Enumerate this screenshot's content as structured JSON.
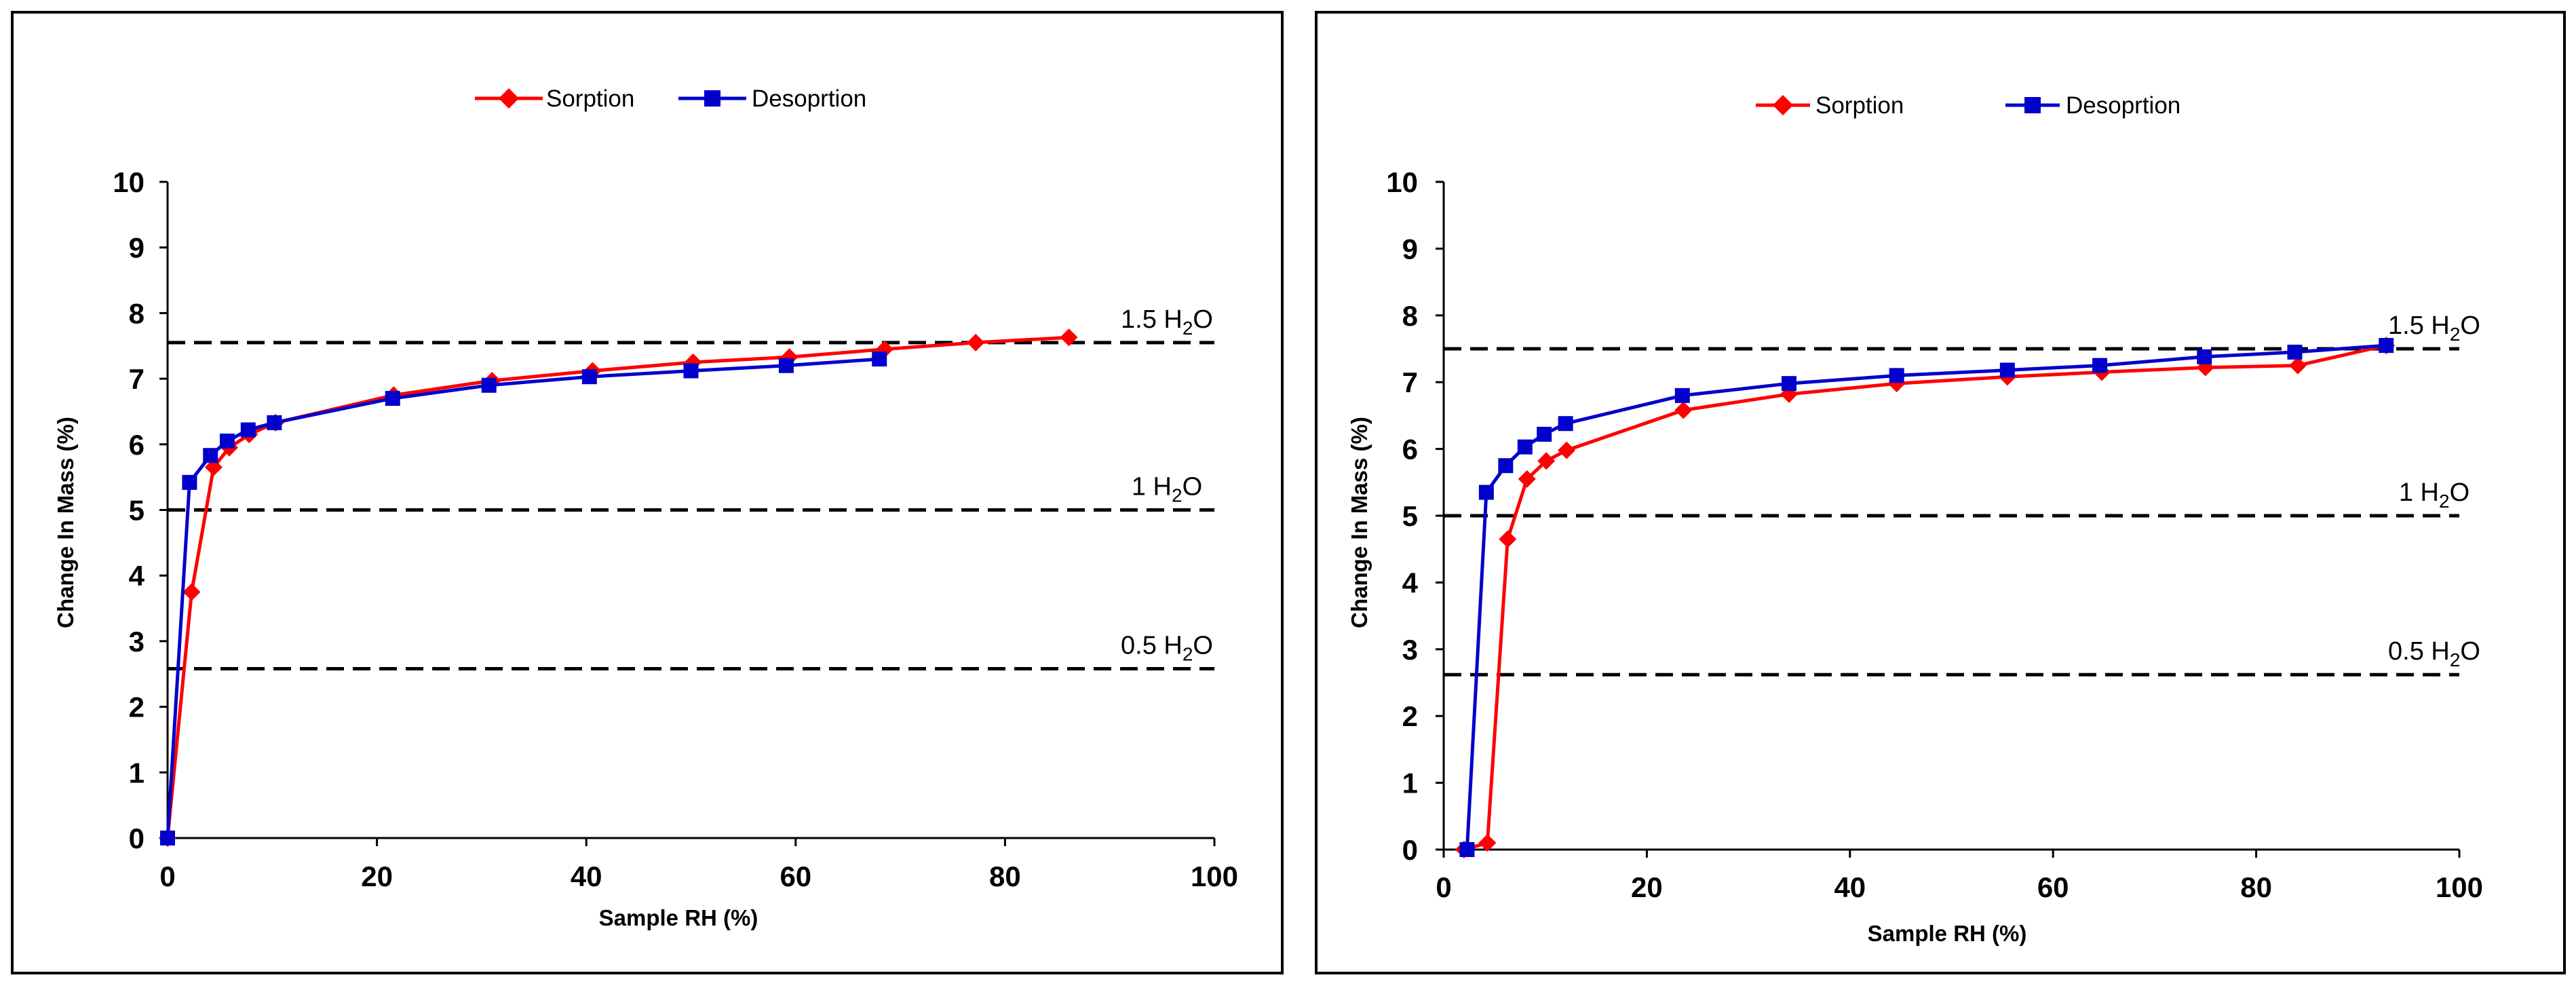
{
  "chart_data": [
    {
      "type": "line",
      "title": "",
      "xlabel": "Sample RH (%)",
      "ylabel": "Change In Mass (%)",
      "xlim": [
        0,
        100
      ],
      "ylim": [
        0,
        10
      ],
      "xticks": [
        "0",
        "20",
        "40",
        "60",
        "80",
        "100"
      ],
      "yticks": [
        "0",
        "1",
        "2",
        "3",
        "4",
        "5",
        "6",
        "7",
        "8",
        "9",
        "10"
      ],
      "legend": {
        "position": "top-center",
        "entries": [
          "Sorption",
          "Desoprtion"
        ]
      },
      "colors": {
        "Sorption": "#ff0000",
        "Desoprtion": "#0000cc"
      },
      "series": [
        {
          "name": "Sorption",
          "marker": "diamond",
          "x": [
            0,
            2.3,
            4.4,
            5.9,
            7.8,
            10.3,
            21.6,
            31.0,
            40.6,
            50.2,
            59.4,
            68.5,
            77.2,
            86.1
          ],
          "y": [
            0,
            3.75,
            5.65,
            5.95,
            6.15,
            6.33,
            6.75,
            6.97,
            7.12,
            7.25,
            7.33,
            7.45,
            7.55,
            7.63
          ]
        },
        {
          "name": "Desoprtion",
          "marker": "square",
          "x": [
            68.0,
            59.1,
            50.0,
            40.3,
            30.7,
            21.5,
            10.2,
            7.7,
            5.7,
            4.1,
            2.1,
            0
          ],
          "y": [
            7.3,
            7.2,
            7.12,
            7.03,
            6.9,
            6.7,
            6.33,
            6.22,
            6.05,
            5.83,
            5.42,
            0
          ]
        }
      ],
      "reference_lines": [
        {
          "y": 7.55,
          "label_main": "1.5 H",
          "label_sub": "2",
          "label_end": "O"
        },
        {
          "y": 5.0,
          "label_main": "1 H",
          "label_sub": "2",
          "label_end": "O"
        },
        {
          "y": 2.58,
          "label_main": "0.5 H",
          "label_sub": "2",
          "label_end": "O"
        }
      ]
    },
    {
      "type": "line",
      "title": "",
      "xlabel": "Sample RH (%)",
      "ylabel": "Change In Mass (%)",
      "xlim": [
        0,
        100
      ],
      "ylim": [
        0,
        10
      ],
      "xticks": [
        "0",
        "20",
        "40",
        "60",
        "80",
        "100"
      ],
      "yticks": [
        "0",
        "1",
        "2",
        "3",
        "4",
        "5",
        "6",
        "7",
        "8",
        "9",
        "10"
      ],
      "legend": {
        "position": "top-center",
        "entries": [
          "Sorption",
          "Desoprtion"
        ]
      },
      "colors": {
        "Sorption": "#ff0000",
        "Desoprtion": "#0000cc"
      },
      "series": [
        {
          "name": "Sorption",
          "marker": "diamond",
          "x": [
            2.0,
            4.3,
            6.3,
            8.2,
            10.1,
            12.1,
            23.6,
            34.0,
            44.6,
            55.5,
            64.8,
            75.0,
            84.1,
            92.8
          ],
          "y": [
            0,
            0.1,
            4.65,
            5.55,
            5.82,
            5.98,
            6.58,
            6.82,
            6.98,
            7.08,
            7.15,
            7.22,
            7.25,
            7.55
          ]
        },
        {
          "name": "Desoprtion",
          "marker": "square",
          "x": [
            92.8,
            83.8,
            74.9,
            64.6,
            55.5,
            44.6,
            34.0,
            23.5,
            12.0,
            9.9,
            8.0,
            6.1,
            4.2,
            2.3
          ],
          "y": [
            7.55,
            7.45,
            7.38,
            7.25,
            7.18,
            7.1,
            6.98,
            6.8,
            6.38,
            6.22,
            6.03,
            5.75,
            5.35,
            0
          ]
        }
      ],
      "reference_lines": [
        {
          "y": 7.5,
          "label_main": "1.5 H",
          "label_sub": "2",
          "label_end": "O"
        },
        {
          "y": 5.0,
          "label_main": "1 H",
          "label_sub": "2",
          "label_end": "O"
        },
        {
          "y": 2.62,
          "label_main": "0.5 H",
          "label_sub": "2",
          "label_end": "O"
        }
      ]
    }
  ]
}
